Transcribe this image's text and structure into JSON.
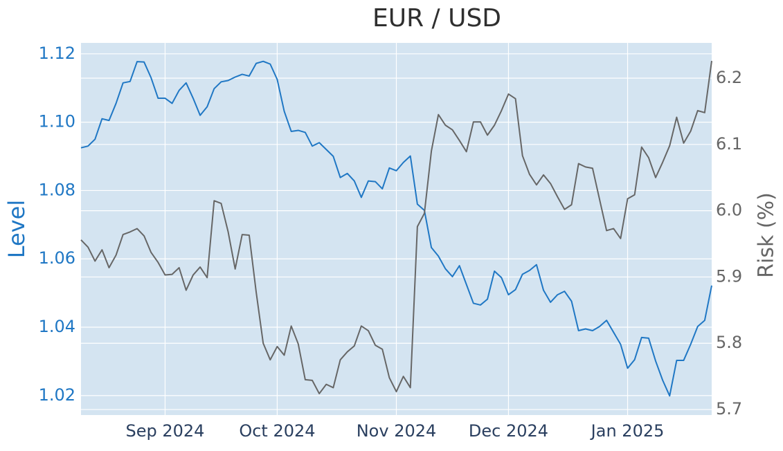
{
  "chart_data": {
    "type": "line",
    "title": "EUR / USD",
    "ylabel": "Level",
    "y2label": "Risk (%)",
    "categories": [
      null,
      null,
      null,
      null,
      null,
      null,
      null,
      null,
      null,
      null,
      null,
      null,
      "Sep 2024",
      null,
      null,
      null,
      null,
      null,
      null,
      null,
      null,
      null,
      null,
      null,
      null,
      null,
      null,
      null,
      "Oct 2024",
      null,
      null,
      null,
      null,
      null,
      null,
      null,
      null,
      null,
      null,
      null,
      null,
      null,
      null,
      null,
      null,
      "Nov 2024",
      null,
      null,
      null,
      null,
      null,
      null,
      null,
      null,
      null,
      null,
      null,
      null,
      null,
      null,
      null,
      "Dec 2024",
      null,
      null,
      null,
      null,
      null,
      null,
      null,
      null,
      null,
      null,
      null,
      null,
      null,
      null,
      null,
      null,
      "Jan 2025",
      null,
      null,
      null,
      null,
      null,
      null,
      null,
      null,
      null,
      null,
      null,
      null
    ],
    "series": [
      {
        "color": "#1f77c4",
        "values": [
          1.0925,
          1.093,
          1.095,
          1.101,
          1.1005,
          1.1055,
          1.1115,
          1.1119,
          1.1177,
          1.1176,
          1.113,
          1.107,
          1.107,
          1.1055,
          1.1093,
          1.1115,
          1.107,
          1.102,
          1.1045,
          1.1098,
          1.1118,
          1.1122,
          1.1132,
          1.114,
          1.1135,
          1.1172,
          1.1178,
          1.117,
          1.1125,
          1.1032,
          1.0973,
          1.0976,
          1.097,
          1.093,
          1.094,
          1.092,
          1.09,
          1.0838,
          1.085,
          1.0828,
          1.078,
          1.0828,
          1.0826,
          1.0805,
          1.0866,
          1.0858,
          1.0882,
          1.0901,
          1.076,
          1.0742,
          1.0633,
          1.0608,
          1.0571,
          1.0548,
          1.058,
          1.0525,
          1.047,
          1.0465,
          1.0482,
          1.0564,
          1.0545,
          1.0495,
          1.051,
          1.0555,
          1.0566,
          1.0583,
          1.0508,
          1.0473,
          1.0495,
          1.0505,
          1.0476,
          1.039,
          1.0395,
          1.039,
          1.0402,
          1.042,
          1.0385,
          1.035,
          1.028,
          1.0305,
          1.037,
          1.0368,
          1.0301,
          1.0245,
          1.0199,
          1.0303,
          1.0303,
          1.035,
          1.0402,
          1.042,
          1.0522
        ]
      },
      {
        "color": "#666666",
        "axis": "y2",
        "values": [
          5.956,
          5.945,
          5.924,
          5.941,
          5.914,
          5.933,
          5.964,
          5.968,
          5.973,
          5.962,
          5.937,
          5.922,
          5.903,
          5.904,
          5.914,
          5.88,
          5.903,
          5.915,
          5.899,
          6.015,
          6.011,
          5.968,
          5.912,
          5.964,
          5.963,
          5.877,
          5.8,
          5.775,
          5.795,
          5.782,
          5.826,
          5.799,
          5.745,
          5.744,
          5.724,
          5.738,
          5.733,
          5.775,
          5.787,
          5.796,
          5.826,
          5.819,
          5.797,
          5.791,
          5.748,
          5.727,
          5.75,
          5.733,
          5.976,
          5.996,
          6.09,
          6.145,
          6.129,
          6.122,
          6.106,
          6.089,
          6.134,
          6.134,
          6.114,
          6.129,
          6.151,
          6.176,
          6.169,
          6.083,
          6.055,
          6.039,
          6.054,
          6.041,
          6.021,
          6.002,
          6.009,
          6.071,
          6.066,
          6.064,
          6.017,
          5.97,
          5.973,
          5.958,
          6.018,
          6.024,
          6.096,
          6.08,
          6.05,
          6.073,
          6.098,
          6.141,
          6.102,
          6.12,
          6.151,
          6.148,
          6.226
        ]
      }
    ],
    "ylim": [
      1.0143,
      1.1232
    ],
    "yticks": [
      1.02,
      1.04,
      1.06,
      1.08,
      {
        "value": 1.1,
        "label": "1.10"
      },
      1.12
    ],
    "y2lim": [
      5.6917,
      6.2532
    ],
    "y2ticks": [
      5.7,
      5.8,
      5.9,
      {
        "value": 6,
        "label": "6.0"
      },
      6.1,
      6.2
    ],
    "grid": true,
    "background": "#d4e4f1"
  }
}
